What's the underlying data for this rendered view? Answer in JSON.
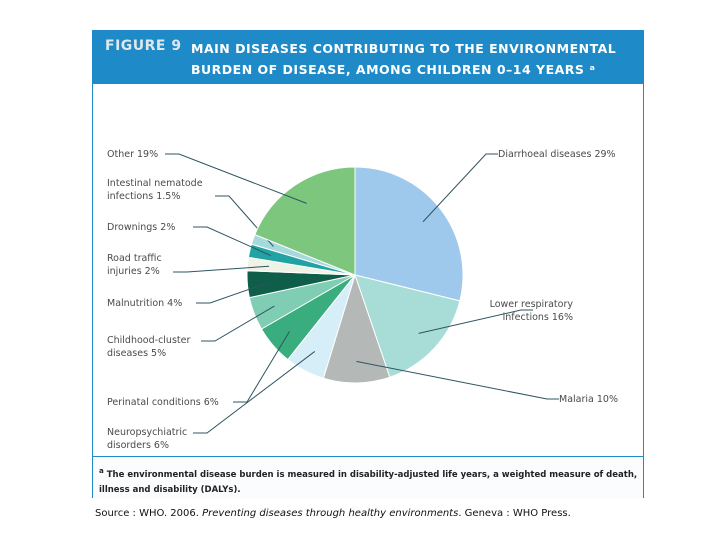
{
  "figure": {
    "label": "FIGURE 9",
    "title": "Main diseases contributing to the environmental burden of disease, among children 0–14 years ᵃ"
  },
  "chart_data": {
    "type": "pie",
    "slices": [
      {
        "label": "Diarrhoeal diseases 29%",
        "name": "Diarrhoeal diseases",
        "value": 29,
        "color": "#9ec8ec"
      },
      {
        "label": "Lower respiratory\ninfections 16%",
        "name": "Lower respiratory infections",
        "value": 16,
        "color": "#a8dcd6"
      },
      {
        "label": "Malaria 10%",
        "name": "Malaria",
        "value": 10,
        "color": "#b4b8b7"
      },
      {
        "label": "Neuropsychiatric\ndisorders 6%",
        "name": "Neuropsychiatric disorders",
        "value": 6,
        "color": "#d6eef7"
      },
      {
        "label": "Perinatal conditions 6%",
        "name": "Perinatal conditions",
        "value": 6,
        "color": "#39ad7e"
      },
      {
        "label": "Childhood-cluster\ndiseases 5%",
        "name": "Childhood-cluster diseases",
        "value": 5,
        "color": "#7fcdb3"
      },
      {
        "label": "Malnutrition 4%",
        "name": "Malnutrition",
        "value": 4,
        "color": "#0e5e4a"
      },
      {
        "label": "Road traffic\ninjuries 2%",
        "name": "Road traffic injuries",
        "value": 2,
        "color": "#eef3e6"
      },
      {
        "label": "Drownings 2%",
        "name": "Drownings",
        "value": 2,
        "color": "#21a3a3"
      },
      {
        "label": "Intestinal nematode\ninfections 1.5%",
        "name": "Intestinal nematode infections",
        "value": 1.5,
        "color": "#a6d9dd"
      },
      {
        "label": "Other 19%",
        "name": "Other",
        "value": 19,
        "color": "#7dc67e"
      }
    ]
  },
  "footnote": {
    "marker": "a",
    "text": "The environmental disease burden is measured in disability-adjusted life years, a weighted measure of death, illness and disability (DALYs)."
  },
  "source": {
    "prefix": "Source : WHO. 2006.",
    "title": "Preventing diseases through healthy environments",
    "suffix": ". Geneva : WHO Press."
  }
}
